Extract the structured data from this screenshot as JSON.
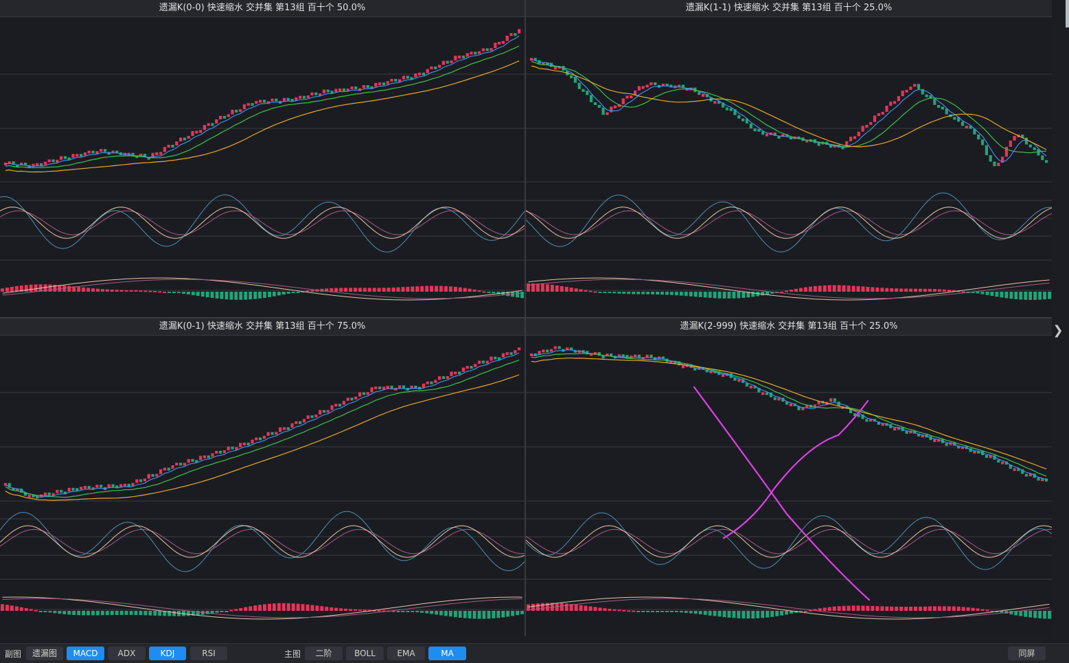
{
  "panels": [
    {
      "title": "遗漏K(0-0)  快速缩水  交并集 第13组  百十个  50.0%"
    },
    {
      "title": "遗漏K(1-1)  快速缩水  交并集 第13组  百十个  25.0%"
    },
    {
      "title": "遗漏K(0-1)  快速缩水  交并集 第13组  百十个  75.0%"
    },
    {
      "title": "遗漏K(2-999)  快速缩水  交并集 第13组  百十个  25.0%"
    }
  ],
  "toolbar": {
    "sub_label": "副图",
    "sub_buttons": [
      {
        "label": "遗漏图",
        "active": false
      },
      {
        "label": "MACD",
        "active": true
      },
      {
        "label": "ADX",
        "active": false
      },
      {
        "label": "KDJ",
        "active": true
      },
      {
        "label": "RSI",
        "active": false
      }
    ],
    "main_label": "主图",
    "main_buttons": [
      {
        "label": "二阶",
        "active": false
      },
      {
        "label": "BOLL",
        "active": false
      },
      {
        "label": "EMA",
        "active": false
      },
      {
        "label": "MA",
        "active": true
      }
    ],
    "same_screen": "同屏"
  },
  "colors": {
    "up": "#e8345a",
    "down": "#1fa579",
    "ma5": "#3f8de8",
    "ma10": "#3fc04f",
    "ma20": "#e8a92c",
    "kdj_k": "#4d8fb5",
    "kdj_d": "#a85b8a",
    "kdj_j": "#e6c8a8",
    "annotation": "#e040e8",
    "grid": "#3a3b42"
  },
  "icons": {
    "edge_arrow": "chevron-right-icon"
  },
  "chart_data": [
    {
      "type": "candlestick",
      "trend": [
        [
          0,
          0.1
        ],
        [
          0.05,
          0.08
        ],
        [
          0.12,
          0.14
        ],
        [
          0.18,
          0.18
        ],
        [
          0.28,
          0.14
        ],
        [
          0.35,
          0.27
        ],
        [
          0.42,
          0.4
        ],
        [
          0.48,
          0.5
        ],
        [
          0.56,
          0.52
        ],
        [
          0.62,
          0.57
        ],
        [
          0.7,
          0.6
        ],
        [
          0.8,
          0.68
        ],
        [
          0.88,
          0.8
        ],
        [
          0.94,
          0.85
        ],
        [
          1.0,
          0.98
        ]
      ],
      "kdj_phase": 1.2,
      "macd_phase": 0.4
    },
    {
      "type": "candlestick",
      "trend": [
        [
          0,
          0.78
        ],
        [
          0.06,
          0.72
        ],
        [
          0.14,
          0.42
        ],
        [
          0.22,
          0.62
        ],
        [
          0.3,
          0.6
        ],
        [
          0.38,
          0.46
        ],
        [
          0.44,
          0.3
        ],
        [
          0.52,
          0.26
        ],
        [
          0.6,
          0.2
        ],
        [
          0.68,
          0.44
        ],
        [
          0.74,
          0.62
        ],
        [
          0.8,
          0.44
        ],
        [
          0.86,
          0.3
        ],
        [
          0.9,
          0.06
        ],
        [
          0.94,
          0.3
        ],
        [
          1.0,
          0.1
        ]
      ],
      "kdj_phase": 2.6,
      "macd_phase": 1.5
    },
    {
      "type": "candlestick",
      "trend": [
        [
          0,
          0.08
        ],
        [
          0.05,
          0.0
        ],
        [
          0.14,
          0.06
        ],
        [
          0.24,
          0.08
        ],
        [
          0.32,
          0.2
        ],
        [
          0.4,
          0.28
        ],
        [
          0.48,
          0.37
        ],
        [
          0.56,
          0.48
        ],
        [
          0.64,
          0.6
        ],
        [
          0.72,
          0.72
        ],
        [
          0.8,
          0.72
        ],
        [
          0.86,
          0.8
        ],
        [
          0.92,
          0.88
        ],
        [
          1.0,
          0.97
        ]
      ],
      "kdj_phase": 0.3,
      "macd_phase": 2.2
    },
    {
      "type": "candlestick",
      "trend": [
        [
          0,
          0.94
        ],
        [
          0.05,
          0.98
        ],
        [
          0.14,
          0.93
        ],
        [
          0.24,
          0.92
        ],
        [
          0.3,
          0.86
        ],
        [
          0.38,
          0.8
        ],
        [
          0.44,
          0.7
        ],
        [
          0.52,
          0.58
        ],
        [
          0.58,
          0.64
        ],
        [
          0.64,
          0.52
        ],
        [
          0.72,
          0.44
        ],
        [
          0.8,
          0.36
        ],
        [
          0.88,
          0.28
        ],
        [
          0.94,
          0.18
        ],
        [
          1.0,
          0.1
        ]
      ],
      "kdj_phase": 3.4,
      "macd_phase": 0.9
    }
  ]
}
